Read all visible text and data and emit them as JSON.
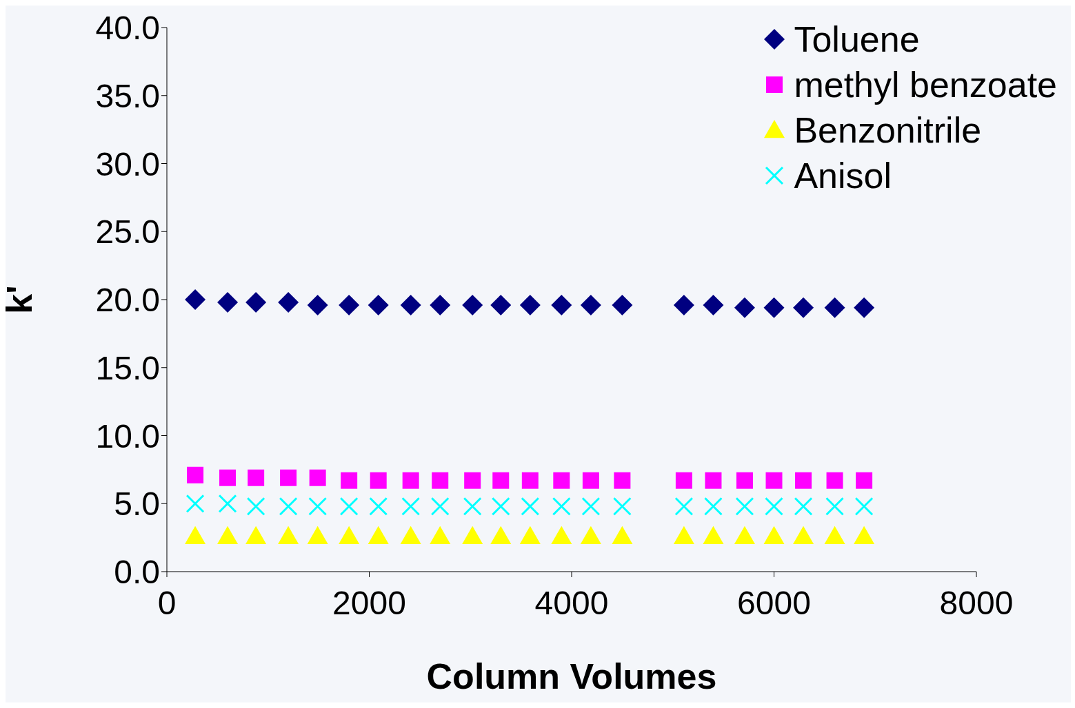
{
  "chart_data": {
    "type": "scatter",
    "xlabel": "Column Volumes",
    "ylabel": "k'",
    "x": [
      280,
      600,
      880,
      1200,
      1490,
      1800,
      2090,
      2410,
      2700,
      3020,
      3300,
      3590,
      3900,
      4190,
      4500,
      5110,
      5400,
      5710,
      6000,
      6290,
      6600,
      6890
    ],
    "series": [
      {
        "name": "Toluene",
        "color": "#000080",
        "marker": "diamond",
        "values": [
          20.0,
          19.8,
          19.8,
          19.8,
          19.6,
          19.6,
          19.6,
          19.6,
          19.6,
          19.6,
          19.6,
          19.6,
          19.6,
          19.6,
          19.6,
          19.6,
          19.6,
          19.4,
          19.4,
          19.4,
          19.4,
          19.4
        ]
      },
      {
        "name": "methyl benzoate",
        "color": "#ff00ff",
        "marker": "square",
        "values": [
          7.1,
          6.9,
          6.9,
          6.9,
          6.9,
          6.7,
          6.7,
          6.7,
          6.7,
          6.7,
          6.7,
          6.7,
          6.7,
          6.7,
          6.7,
          6.7,
          6.7,
          6.7,
          6.7,
          6.7,
          6.7,
          6.7
        ]
      },
      {
        "name": "Benzonitrile",
        "color": "#ffff00",
        "marker": "triangle",
        "values": [
          2.6,
          2.6,
          2.6,
          2.6,
          2.6,
          2.6,
          2.6,
          2.6,
          2.6,
          2.6,
          2.6,
          2.6,
          2.6,
          2.6,
          2.6,
          2.6,
          2.6,
          2.6,
          2.6,
          2.6,
          2.6,
          2.6
        ]
      },
      {
        "name": "Anisol",
        "color": "#00ffff",
        "marker": "cross",
        "values": [
          5.0,
          5.0,
          4.8,
          4.8,
          4.8,
          4.8,
          4.8,
          4.8,
          4.8,
          4.8,
          4.8,
          4.8,
          4.8,
          4.8,
          4.8,
          4.8,
          4.8,
          4.8,
          4.8,
          4.8,
          4.8,
          4.8
        ]
      }
    ],
    "xlim": [
      0,
      8000
    ],
    "xticks": [
      0,
      2000,
      4000,
      6000,
      8000
    ],
    "ylim": [
      0,
      40
    ],
    "yticks": [
      {
        "value": 0,
        "label": "0.0"
      },
      {
        "value": 5,
        "label": "5.0"
      },
      {
        "value": 10,
        "label": "10.0"
      },
      {
        "value": 15,
        "label": "15.0"
      },
      {
        "value": 20,
        "label": "20.0"
      },
      {
        "value": 25,
        "label": "25.0"
      },
      {
        "value": 30,
        "label": "30.0"
      },
      {
        "value": 35,
        "label": "35.0"
      },
      {
        "value": 40,
        "label": "40.0"
      }
    ],
    "grid": false,
    "legend": "top right"
  }
}
